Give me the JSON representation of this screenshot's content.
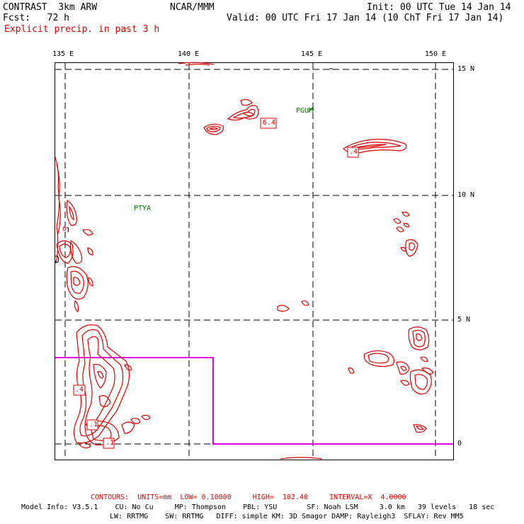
{
  "header": {
    "left_line1": "CONTRAST  3km ARW",
    "left_line2": "Fcst:   72 h",
    "left_line3": "Explicit precip. in past 3 h",
    "center": "NCAR/MMM",
    "right_line1": "Init: 00 UTC Tue 14 Jan 14",
    "right_line2": "Valid: 00 UTC Fri 17 Jan 14 (10 ChT Fri 17 Jan 14)"
  },
  "axes": {
    "lon_labels": [
      "135 E",
      "140 E",
      "145 E",
      "150 E"
    ],
    "lat_labels": [
      "15 N",
      "10 N",
      "5 N",
      "0"
    ]
  },
  "stations": {
    "pgum": "PGUM",
    "ptya": "PTYA"
  },
  "contour_labels": {
    "a": "6.4",
    "b": ".4",
    "c": ".4",
    "d": ".1",
    "e": ".1",
    "f": "6"
  },
  "footer": {
    "contours": "CONTOURS:  UNITS=mm  LOW= 0.10000     HIGH=  102.40     INTERVAL=X  4.0000",
    "model_line1": "Model Info: V3.5.1    CU: No Cu     MP: Thompson    PBL: YSU       SF: Noah LSM     3.0 km   39 levels   18 sec",
    "model_line2": "LW: RRTMG    SW: RRTMG   DIFF: simple KM: 3D Smagor DAMP: Rayleigh3  SFLAY: Rev MM5"
  },
  "colors": {
    "precip": "#e00000",
    "domain_box": "#e000e0",
    "station": "#008000",
    "grid": "#000000"
  }
}
